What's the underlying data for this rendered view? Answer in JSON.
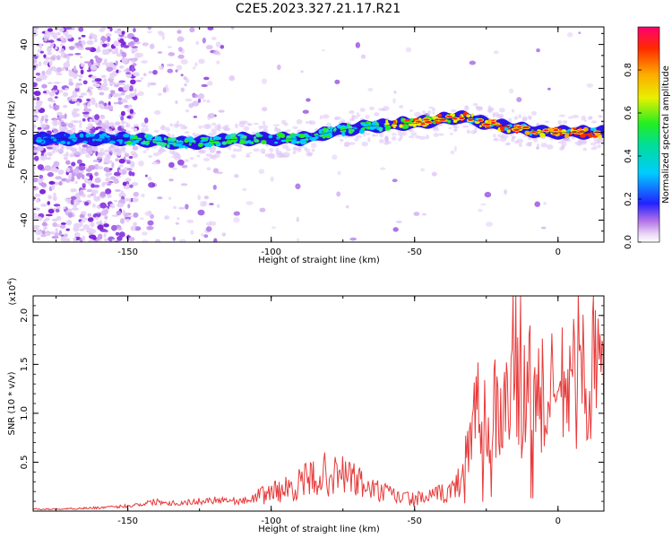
{
  "title": "C2E5.2023.327.21.17.R21",
  "chart_data": [
    {
      "type": "heatmap",
      "xlabel": "Height of straight line (km)",
      "ylabel": "Frequency (Hz)",
      "xlim": [
        -183,
        16
      ],
      "ylim": [
        -50,
        48
      ],
      "xticks": [
        -150,
        -100,
        -50,
        0
      ],
      "yticks": [
        -40,
        -20,
        0,
        20,
        40
      ],
      "ridge": {
        "x": [
          -183,
          -170,
          -160,
          -150,
          -140,
          -130,
          -120,
          -110,
          -100,
          -90,
          -85,
          -80,
          -75,
          -70,
          -65,
          -60,
          -55,
          -50,
          -45,
          -40,
          -35,
          -30,
          -25,
          -20,
          -15,
          -10,
          -5,
          0,
          5,
          10,
          16
        ],
        "y": [
          -3,
          -3,
          -3,
          -3,
          -4,
          -5,
          -4,
          -3,
          -3,
          -3,
          -2,
          0,
          1,
          2,
          3,
          3,
          4,
          4,
          5,
          6,
          7,
          6,
          4,
          3,
          2,
          1,
          0,
          0,
          0,
          0,
          0
        ]
      },
      "colorbar": {
        "label": "Normalized spectral amplitude",
        "range": [
          0,
          1
        ],
        "ticks": [
          "0.0",
          "0.2",
          "0.4",
          "0.6",
          "0.8"
        ],
        "tick_values": [
          0,
          0.2,
          0.4,
          0.6,
          0.8
        ]
      }
    },
    {
      "type": "line",
      "xlabel": "Height of straight line (km)",
      "ylabel": "SNR (10 * v/v)",
      "scale_label": "(x10",
      "scale_exp": "4",
      "scale_close": ")",
      "xlim": [
        -183,
        16
      ],
      "ylim": [
        0,
        2.2
      ],
      "xticks": [
        -150,
        -100,
        -50,
        0
      ],
      "yticks": [
        0.5,
        1.0,
        1.5,
        2.0
      ],
      "ytick_labels": [
        "0.5",
        "1.0",
        "1.5",
        "2.0"
      ],
      "color": "#e83a3a",
      "series": [
        {
          "x": [
            -183,
            -175,
            -165,
            -155,
            -148,
            -140,
            -133,
            -125,
            -118,
            -110,
            -105,
            -100,
            -95,
            -90,
            -86,
            -82,
            -78,
            -74,
            -70,
            -65,
            -60,
            -55,
            -50,
            -45,
            -40,
            -36,
            -33,
            -31,
            -29,
            -27,
            -25,
            -23,
            -21,
            -19,
            -17,
            -15,
            -14,
            -13,
            -12,
            -11,
            -10,
            -8,
            -6,
            -4,
            -2,
            0,
            2,
            4,
            6,
            8,
            10,
            12,
            14,
            16
          ],
          "values": [
            0.02,
            0.02,
            0.03,
            0.04,
            0.06,
            0.1,
            0.08,
            0.1,
            0.12,
            0.1,
            0.14,
            0.2,
            0.22,
            0.28,
            0.33,
            0.38,
            0.35,
            0.38,
            0.3,
            0.22,
            0.18,
            0.14,
            0.12,
            0.14,
            0.18,
            0.22,
            0.4,
            0.75,
            0.9,
            1.05,
            0.95,
            1.1,
            1.0,
            1.15,
            0.9,
            1.3,
            1.6,
            0.7,
            1.2,
            0.95,
            1.25,
            1.1,
            1.2,
            1.05,
            1.2,
            1.15,
            1.3,
            1.25,
            1.35,
            1.55,
            1.3,
            1.5,
            1.35,
            1.4
          ]
        }
      ]
    }
  ]
}
